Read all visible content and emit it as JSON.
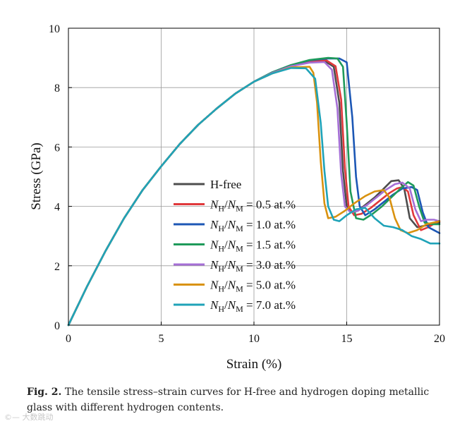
{
  "chart_data": {
    "type": "line",
    "title": "",
    "xlabel": "Strain (%)",
    "ylabel": "Stress (GPa)",
    "xlim": [
      0,
      20
    ],
    "ylim": [
      0,
      10
    ],
    "xticks": [
      "0",
      "5",
      "10",
      "15",
      "20"
    ],
    "yticks": [
      "0",
      "2",
      "4",
      "6",
      "8",
      "10"
    ],
    "grid": true,
    "legend_position": "bottom-center",
    "series": [
      {
        "name": "H-free",
        "label_parts": [
          "H-free"
        ],
        "color": "#4d4d4d",
        "x": [
          0,
          1,
          2,
          3,
          4,
          5,
          6,
          7,
          8,
          9,
          10,
          11,
          12,
          13,
          13.8,
          14.3,
          14.6,
          14.8,
          15.0,
          15.3,
          15.6,
          16.0,
          16.5,
          17.0,
          17.4,
          17.8,
          18.1,
          18.4,
          18.8,
          19.2,
          19.6,
          20
        ],
        "y": [
          0,
          1.3,
          2.5,
          3.6,
          4.55,
          5.35,
          6.1,
          6.75,
          7.3,
          7.8,
          8.2,
          8.5,
          8.73,
          8.88,
          8.9,
          8.7,
          7.5,
          5.2,
          4.0,
          3.8,
          3.85,
          4.05,
          4.3,
          4.6,
          4.85,
          4.88,
          4.6,
          3.6,
          3.3,
          3.35,
          3.4,
          3.45
        ]
      },
      {
        "name": "N_H/N_M = 0.5 at.%",
        "label_parts": [
          "N",
          "H",
          "/",
          "N",
          "M",
          " = 0.5 at.%"
        ],
        "color": "#e0393b",
        "x": [
          0,
          1,
          2,
          3,
          4,
          5,
          6,
          7,
          8,
          9,
          10,
          11,
          12,
          13,
          13.9,
          14.4,
          14.7,
          14.9,
          15.1,
          15.4,
          15.8,
          16.3,
          16.8,
          17.3,
          17.7,
          18.0,
          18.3,
          18.6,
          19.0,
          19.4,
          19.8,
          20
        ],
        "y": [
          0,
          1.3,
          2.5,
          3.6,
          4.55,
          5.35,
          6.1,
          6.75,
          7.3,
          7.8,
          8.2,
          8.5,
          8.73,
          8.88,
          8.92,
          8.72,
          7.6,
          5.3,
          4.0,
          3.7,
          3.75,
          3.95,
          4.2,
          4.45,
          4.6,
          4.65,
          4.5,
          3.7,
          3.2,
          3.3,
          3.45,
          3.5
        ]
      },
      {
        "name": "N_H/N_M = 1.0 at.%",
        "label_parts": [
          "N",
          "H",
          "/",
          "N",
          "M",
          " = 1.0 at.%"
        ],
        "color": "#1c57b5",
        "x": [
          0,
          1,
          2,
          3,
          4,
          5,
          6,
          7,
          8,
          9,
          10,
          11,
          12,
          13,
          14,
          14.6,
          15.0,
          15.3,
          15.5,
          15.7,
          16.0,
          16.5,
          17.0,
          17.5,
          18.0,
          18.5,
          18.8,
          19.1,
          19.4,
          19.7,
          20
        ],
        "y": [
          0,
          1.3,
          2.5,
          3.6,
          4.55,
          5.35,
          6.1,
          6.75,
          7.3,
          7.8,
          8.2,
          8.52,
          8.76,
          8.92,
          8.98,
          8.98,
          8.85,
          7.0,
          5.0,
          4.0,
          3.7,
          3.9,
          4.15,
          4.4,
          4.6,
          4.65,
          4.55,
          3.8,
          3.3,
          3.2,
          3.1
        ]
      },
      {
        "name": "N_H/N_M = 1.5 at.%",
        "label_parts": [
          "N",
          "H",
          "/",
          "N",
          "M",
          " = 1.5 at.%"
        ],
        "color": "#1f9a5a",
        "x": [
          0,
          1,
          2,
          3,
          4,
          5,
          6,
          7,
          8,
          9,
          10,
          11,
          12,
          13,
          14,
          14.5,
          14.8,
          15.0,
          15.2,
          15.5,
          15.9,
          16.4,
          16.9,
          17.4,
          17.9,
          18.3,
          18.6,
          18.9,
          19.2,
          19.6,
          20
        ],
        "y": [
          0,
          1.3,
          2.5,
          3.6,
          4.55,
          5.35,
          6.1,
          6.75,
          7.3,
          7.8,
          8.2,
          8.52,
          8.76,
          8.93,
          9.0,
          8.98,
          8.7,
          6.8,
          4.5,
          3.6,
          3.55,
          3.75,
          4.0,
          4.3,
          4.6,
          4.82,
          4.7,
          4.0,
          3.45,
          3.4,
          3.4
        ]
      },
      {
        "name": "N_H/N_M = 3.0 at.%",
        "label_parts": [
          "N",
          "H",
          "/",
          "N",
          "M",
          " = 3.0 at.%"
        ],
        "color": "#a56fd6",
        "x": [
          0,
          1,
          2,
          3,
          4,
          5,
          6,
          7,
          8,
          9,
          10,
          11,
          12,
          13,
          13.8,
          14.2,
          14.5,
          14.7,
          14.9,
          15.2,
          15.6,
          16.1,
          16.6,
          17.1,
          17.6,
          18.0,
          18.4,
          18.7,
          19.0,
          19.3,
          19.7,
          20
        ],
        "y": [
          0,
          1.3,
          2.5,
          3.6,
          4.55,
          5.35,
          6.1,
          6.75,
          7.3,
          7.8,
          8.2,
          8.5,
          8.72,
          8.84,
          8.86,
          8.6,
          7.3,
          5.1,
          4.0,
          3.8,
          3.85,
          4.05,
          4.3,
          4.55,
          4.75,
          4.8,
          4.6,
          3.9,
          3.5,
          3.55,
          3.55,
          3.5
        ]
      },
      {
        "name": "N_H/N_M = 5.0 at.%",
        "label_parts": [
          "N",
          "H",
          "/",
          "N",
          "M",
          " = 5.0 at.%"
        ],
        "color": "#d9920f",
        "x": [
          0,
          1,
          2,
          3,
          4,
          5,
          6,
          7,
          8,
          9,
          10,
          11,
          12,
          13,
          13.2,
          13.4,
          13.6,
          13.8,
          14.0,
          14.4,
          14.9,
          15.4,
          16.0,
          16.5,
          17.0,
          17.3,
          17.6,
          17.9,
          18.3,
          18.8,
          19.3,
          20
        ],
        "y": [
          0,
          1.3,
          2.5,
          3.6,
          4.55,
          5.35,
          6.1,
          6.75,
          7.3,
          7.8,
          8.2,
          8.48,
          8.68,
          8.7,
          8.5,
          7.5,
          5.5,
          4.1,
          3.6,
          3.65,
          3.85,
          4.1,
          4.35,
          4.5,
          4.55,
          4.3,
          3.6,
          3.2,
          3.1,
          3.2,
          3.4,
          3.5
        ]
      },
      {
        "name": "N_H/N_M = 7.0 at.%",
        "label_parts": [
          "N",
          "H",
          "/",
          "N",
          "M",
          " = 7.0 at.%"
        ],
        "color": "#1fa3b8",
        "x": [
          0,
          1,
          2,
          3,
          4,
          5,
          6,
          7,
          8,
          9,
          10,
          11,
          12,
          12.8,
          13.3,
          13.6,
          13.8,
          14.0,
          14.3,
          14.6,
          15.0,
          15.5,
          16.0,
          16.5,
          17.0,
          17.5,
          18.0,
          18.5,
          19.0,
          19.5,
          20
        ],
        "y": [
          0,
          1.3,
          2.5,
          3.6,
          4.55,
          5.35,
          6.1,
          6.75,
          7.3,
          7.8,
          8.2,
          8.48,
          8.66,
          8.65,
          8.3,
          6.8,
          5.2,
          4.0,
          3.55,
          3.5,
          3.7,
          3.9,
          3.95,
          3.6,
          3.35,
          3.3,
          3.2,
          3.0,
          2.9,
          2.75,
          2.75
        ]
      }
    ]
  },
  "caption": {
    "label": "Fig. 2.",
    "text": "The tensile stress–strain curves for H-free and hydrogen doping metallic glass with different hydrogen contents."
  },
  "watermark": "©— 大数跳动"
}
